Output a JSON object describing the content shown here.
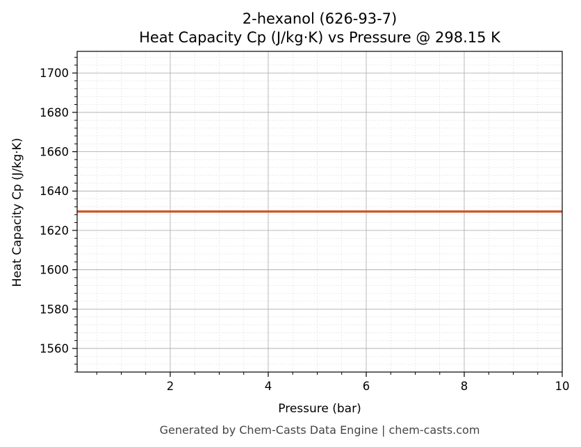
{
  "chart_data": {
    "type": "line",
    "title": "2-hexanol (626-93-7)",
    "subtitle": "Heat Capacity Cp (J/kg·K) vs Pressure @ 298.15 K",
    "xlabel": "Pressure (bar)",
    "ylabel": "Heat Capacity Cp (J/kg·K)",
    "xlim": [
      0.1,
      10
    ],
    "ylim": [
      1548,
      1711
    ],
    "x_ticks": [
      2,
      4,
      6,
      8,
      10
    ],
    "x_tick_labels": [
      "2",
      "4",
      "6",
      "8",
      "10"
    ],
    "y_ticks": [
      1560,
      1580,
      1600,
      1620,
      1640,
      1660,
      1680,
      1700
    ],
    "y_tick_labels": [
      "1560",
      "1580",
      "1600",
      "1620",
      "1640",
      "1660",
      "1680",
      "1700"
    ],
    "grid": true,
    "series": [
      {
        "x": [
          0.1,
          10
        ],
        "y": [
          1629.6,
          1629.6
        ],
        "color": "#cc5529"
      }
    ]
  },
  "footer": "Generated by Chem-Casts Data Engine | chem-casts.com"
}
